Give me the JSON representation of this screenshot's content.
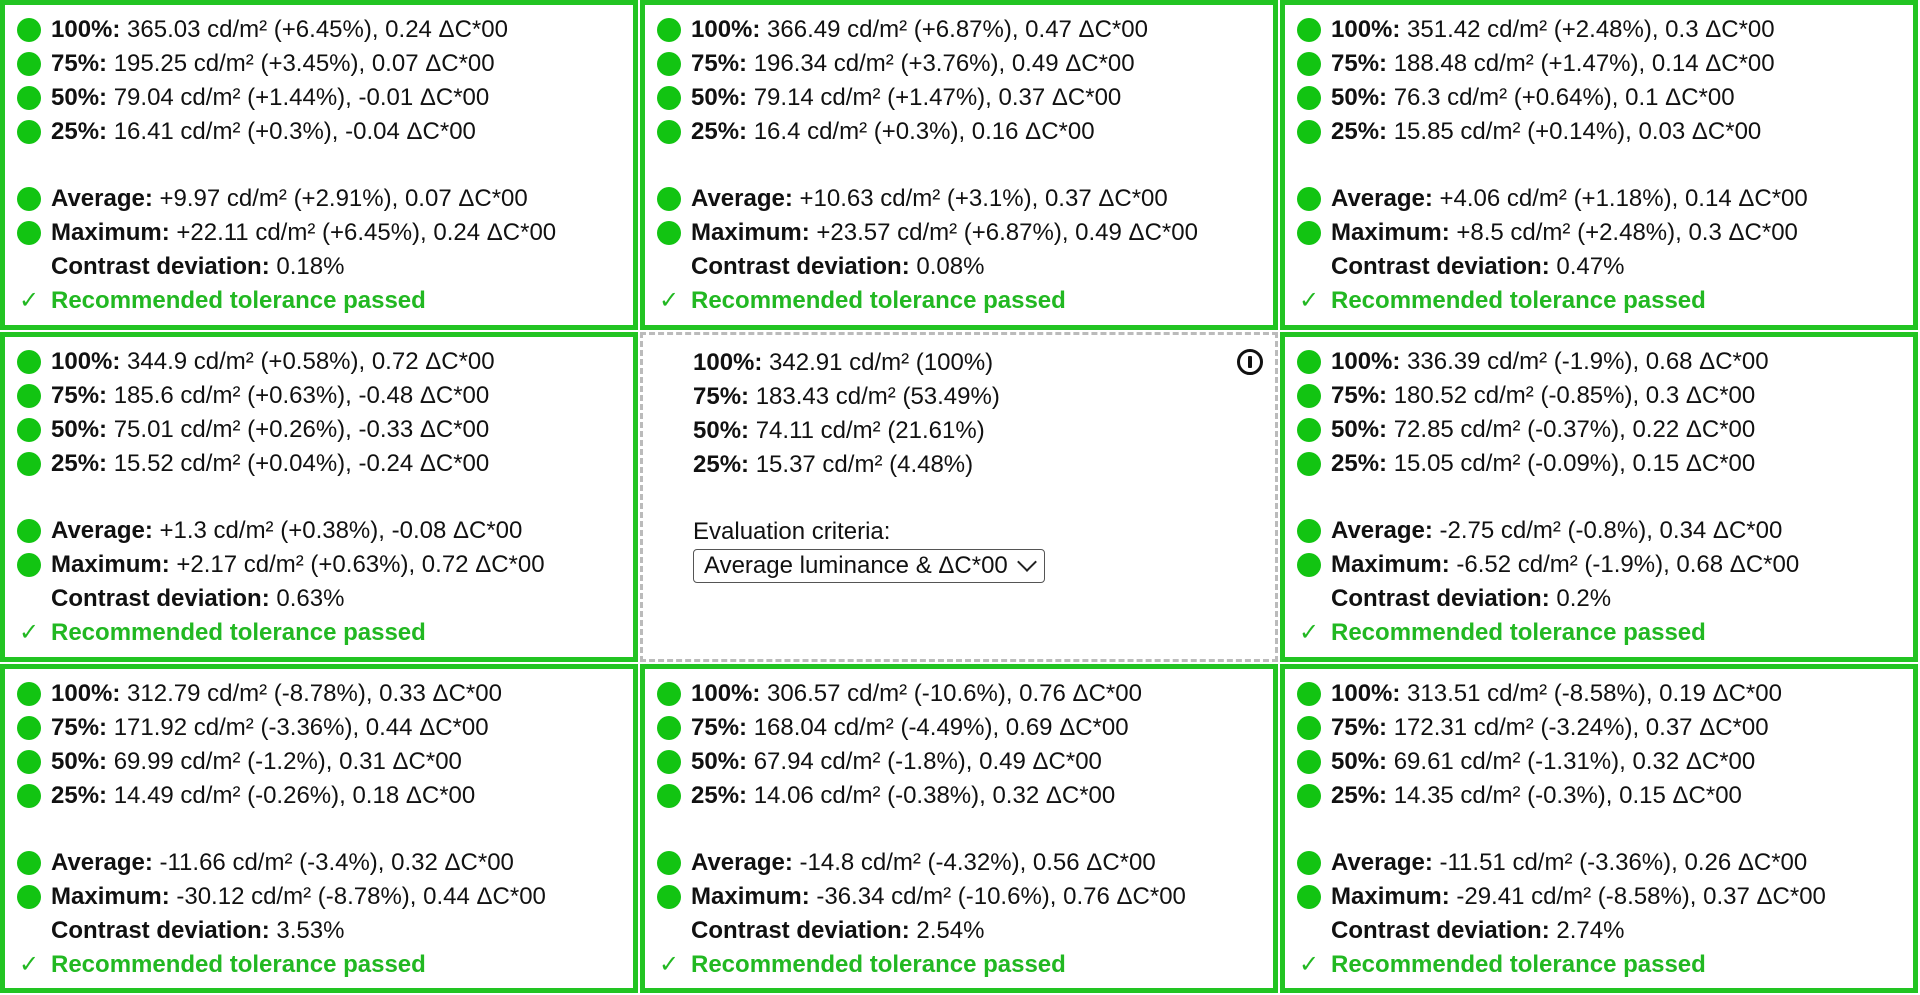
{
  "cells": [
    {
      "p100_label": "100%:",
      "p100": "365.03 cd/m² (+6.45%), 0.24 ΔC*00",
      "p75_label": "75%:",
      "p75": "195.25 cd/m² (+3.45%), 0.07 ΔC*00",
      "p50_label": "50%:",
      "p50": "79.04 cd/m² (+1.44%), -0.01 ΔC*00",
      "p25_label": "25%:",
      "p25": "16.41 cd/m² (+0.3%), -0.04 ΔC*00",
      "avg_label": "Average:",
      "avg": "+9.97 cd/m² (+2.91%), 0.07 ΔC*00",
      "max_label": "Maximum:",
      "max": "+22.11 cd/m² (+6.45%), 0.24 ΔC*00",
      "contrast_label": "Contrast deviation:",
      "contrast": "0.18%",
      "check": "✓",
      "result": "Recommended tolerance passed"
    },
    {
      "p100_label": "100%:",
      "p100": "366.49 cd/m² (+6.87%), 0.47 ΔC*00",
      "p75_label": "75%:",
      "p75": "196.34 cd/m² (+3.76%), 0.49 ΔC*00",
      "p50_label": "50%:",
      "p50": "79.14 cd/m² (+1.47%), 0.37 ΔC*00",
      "p25_label": "25%:",
      "p25": "16.4 cd/m² (+0.3%), 0.16 ΔC*00",
      "avg_label": "Average:",
      "avg": "+10.63 cd/m² (+3.1%), 0.37 ΔC*00",
      "max_label": "Maximum:",
      "max": "+23.57 cd/m² (+6.87%), 0.49 ΔC*00",
      "contrast_label": "Contrast deviation:",
      "contrast": "0.08%",
      "check": "✓",
      "result": "Recommended tolerance passed"
    },
    {
      "p100_label": "100%:",
      "p100": "351.42 cd/m² (+2.48%), 0.3 ΔC*00",
      "p75_label": "75%:",
      "p75": "188.48 cd/m² (+1.47%), 0.14 ΔC*00",
      "p50_label": "50%:",
      "p50": "76.3 cd/m² (+0.64%), 0.1 ΔC*00",
      "p25_label": "25%:",
      "p25": "15.85 cd/m² (+0.14%), 0.03 ΔC*00",
      "avg_label": "Average:",
      "avg": "+4.06 cd/m² (+1.18%), 0.14 ΔC*00",
      "max_label": "Maximum:",
      "max": "+8.5 cd/m² (+2.48%), 0.3 ΔC*00",
      "contrast_label": "Contrast deviation:",
      "contrast": "0.47%",
      "check": "✓",
      "result": "Recommended tolerance passed"
    },
    {
      "p100_label": "100%:",
      "p100": "344.9 cd/m² (+0.58%), 0.72 ΔC*00",
      "p75_label": "75%:",
      "p75": "185.6 cd/m² (+0.63%), -0.48 ΔC*00",
      "p50_label": "50%:",
      "p50": "75.01 cd/m² (+0.26%), -0.33 ΔC*00",
      "p25_label": "25%:",
      "p25": "15.52 cd/m² (+0.04%), -0.24 ΔC*00",
      "avg_label": "Average:",
      "avg": "+1.3 cd/m² (+0.38%), -0.08 ΔC*00",
      "max_label": "Maximum:",
      "max": "+2.17 cd/m² (+0.63%), 0.72 ΔC*00",
      "contrast_label": "Contrast deviation:",
      "contrast": "0.63%",
      "check": "✓",
      "result": "Recommended tolerance passed"
    },
    {
      "p100_label": "100%:",
      "p100": "336.39 cd/m² (-1.9%), 0.68 ΔC*00",
      "p75_label": "75%:",
      "p75": "180.52 cd/m² (-0.85%), 0.3 ΔC*00",
      "p50_label": "50%:",
      "p50": "72.85 cd/m² (-0.37%), 0.22 ΔC*00",
      "p25_label": "25%:",
      "p25": "15.05 cd/m² (-0.09%), 0.15 ΔC*00",
      "avg_label": "Average:",
      "avg": "-2.75 cd/m² (-0.8%), 0.34 ΔC*00",
      "max_label": "Maximum:",
      "max": "-6.52 cd/m² (-1.9%), 0.68 ΔC*00",
      "contrast_label": "Contrast deviation:",
      "contrast": "0.2%",
      "check": "✓",
      "result": "Recommended tolerance passed"
    },
    {
      "p100_label": "100%:",
      "p100": "312.79 cd/m² (-8.78%), 0.33 ΔC*00",
      "p75_label": "75%:",
      "p75": "171.92 cd/m² (-3.36%), 0.44 ΔC*00",
      "p50_label": "50%:",
      "p50": "69.99 cd/m² (-1.2%), 0.31 ΔC*00",
      "p25_label": "25%:",
      "p25": "14.49 cd/m² (-0.26%), 0.18 ΔC*00",
      "avg_label": "Average:",
      "avg": "-11.66 cd/m² (-3.4%), 0.32 ΔC*00",
      "max_label": "Maximum:",
      "max": "-30.12 cd/m² (-8.78%), 0.44 ΔC*00",
      "contrast_label": "Contrast deviation:",
      "contrast": "3.53%",
      "check": "✓",
      "result": "Recommended tolerance passed"
    },
    {
      "p100_label": "100%:",
      "p100": "306.57 cd/m² (-10.6%), 0.76 ΔC*00",
      "p75_label": "75%:",
      "p75": "168.04 cd/m² (-4.49%), 0.69 ΔC*00",
      "p50_label": "50%:",
      "p50": "67.94 cd/m² (-1.8%), 0.49 ΔC*00",
      "p25_label": "25%:",
      "p25": "14.06 cd/m² (-0.38%), 0.32 ΔC*00",
      "avg_label": "Average:",
      "avg": "-14.8 cd/m² (-4.32%), 0.56 ΔC*00",
      "max_label": "Maximum:",
      "max": "-36.34 cd/m² (-10.6%), 0.76 ΔC*00",
      "contrast_label": "Contrast deviation:",
      "contrast": "2.54%",
      "check": "✓",
      "result": "Recommended tolerance passed"
    },
    {
      "p100_label": "100%:",
      "p100": "313.51 cd/m² (-8.58%), 0.19 ΔC*00",
      "p75_label": "75%:",
      "p75": "172.31 cd/m² (-3.24%), 0.37 ΔC*00",
      "p50_label": "50%:",
      "p50": "69.61 cd/m² (-1.31%), 0.32 ΔC*00",
      "p25_label": "25%:",
      "p25": "14.35 cd/m² (-0.3%), 0.15 ΔC*00",
      "avg_label": "Average:",
      "avg": "-11.51 cd/m² (-3.36%), 0.26 ΔC*00",
      "max_label": "Maximum:",
      "max": "-29.41 cd/m² (-8.58%), 0.37 ΔC*00",
      "contrast_label": "Contrast deviation:",
      "contrast": "2.74%",
      "check": "✓",
      "result": "Recommended tolerance passed"
    }
  ],
  "center": {
    "p100_label": "100%:",
    "p100": "342.91 cd/m² (100%)",
    "p75_label": "75%:",
    "p75": "183.43 cd/m² (53.49%)",
    "p50_label": "50%:",
    "p50": "74.11 cd/m² (21.61%)",
    "p25_label": "25%:",
    "p25": "15.37 cd/m² (4.48%)",
    "criteria_label": "Evaluation criteria:",
    "criteria_value": "Average luminance & ΔC*00",
    "icon": "info-icon"
  },
  "colors": {
    "pass_border": "#22c422",
    "status_dot": "#12c412",
    "pass_text": "#22b822",
    "center_border": "#bbbbbb"
  }
}
